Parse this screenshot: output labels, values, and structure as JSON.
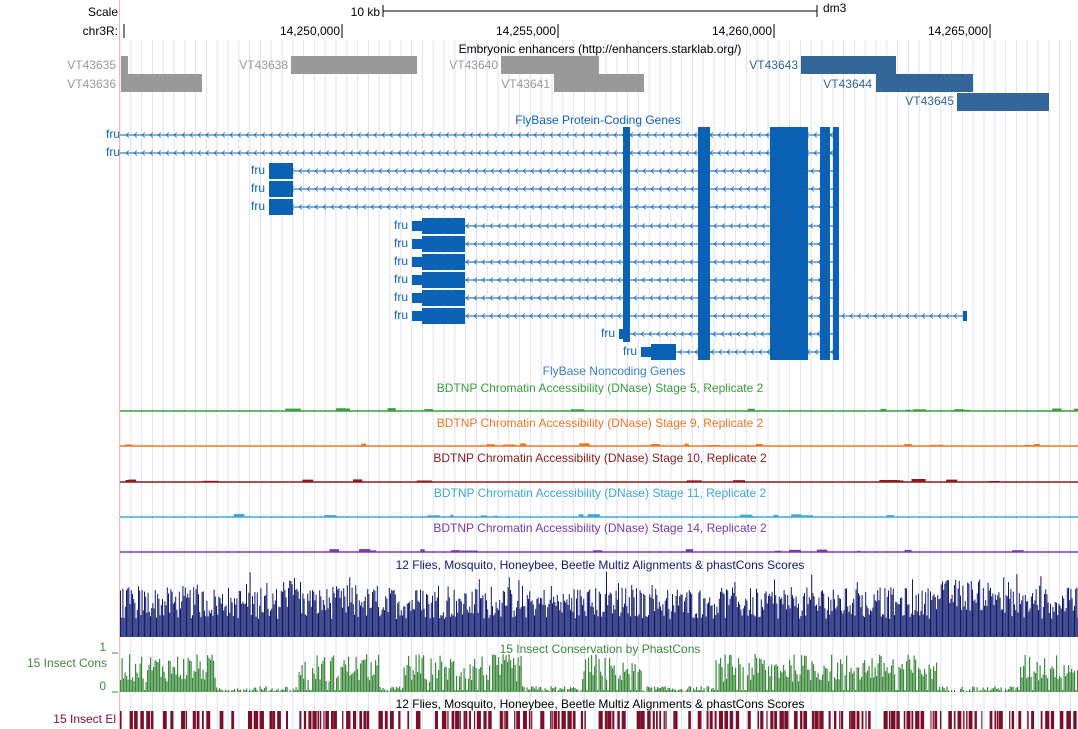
{
  "header": {
    "scale_label": "Scale",
    "chrom_label": "chr3R:",
    "scale_bar_text": "10 kb",
    "assembly": "dm3",
    "ruler_ticks": [
      "14,250,000",
      "14,255,000",
      "14,260,000",
      "14,265,000"
    ]
  },
  "tracks": {
    "enhancers": {
      "title": "Embryonic enhancers (http://enhancers.starklab.org/)",
      "features": [
        {
          "name": "VT43635",
          "color": "#999999"
        },
        {
          "name": "VT43636",
          "color": "#999999"
        },
        {
          "name": "VT43638",
          "color": "#999999"
        },
        {
          "name": "VT43640",
          "color": "#999999"
        },
        {
          "name": "VT43641",
          "color": "#999999"
        },
        {
          "name": "VT43643",
          "color": "#336699"
        },
        {
          "name": "VT43644",
          "color": "#336699"
        },
        {
          "name": "VT43645",
          "color": "#336699"
        }
      ]
    },
    "protein_coding": {
      "title": "FlyBase Protein-Coding Genes",
      "color": "#0b62b4",
      "gene_label": "fru",
      "transcript_count": 13
    },
    "noncoding": {
      "title": "FlyBase Noncoding Genes"
    },
    "dnase": [
      {
        "title": "BDTNP Chromatin Accessibility (DNase) Stage 5, Replicate 2",
        "color": "#3aa03a"
      },
      {
        "title": "BDTNP Chromatin Accessibility (DNase) Stage 9, Replicate 2",
        "color": "#ee7722"
      },
      {
        "title": "BDTNP Chromatin Accessibility (DNase) Stage 10, Replicate 2",
        "color": "#8b1a1a"
      },
      {
        "title": "BDTNP Chromatin Accessibility (DNase) Stage 11, Replicate 2",
        "color": "#3ea7d8"
      },
      {
        "title": "BDTNP Chromatin Accessibility (DNase) Stage 14, Replicate 2",
        "color": "#7a3aa8"
      }
    ],
    "multiz": {
      "title": "12 Flies, Mosquito, Honeybee, Beetle Multiz Alignments & phastCons Scores",
      "color": "#101a6e"
    },
    "insect_cons": {
      "title": "15 Insect Conservation by PhastCons",
      "side_label": "15 Insect Cons",
      "ymax": "1",
      "ymin": "0",
      "color": "#3d8a3d"
    },
    "insect_el": {
      "title": "12 Flies, Mosquito, Honeybee, Beetle Multiz Alignments & phastCons Scores",
      "side_label": "15 Insect El",
      "color": "#7a0f2a"
    }
  }
}
